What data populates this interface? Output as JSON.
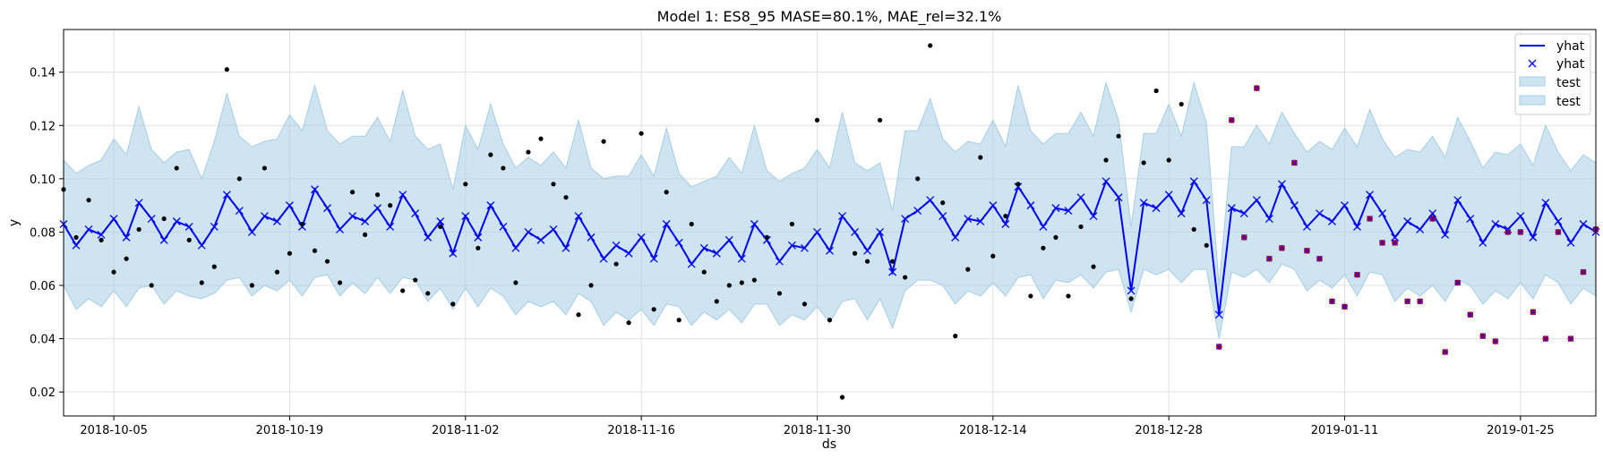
{
  "chart_data": {
    "type": "line",
    "title": "Model 1: ES8_95 MASE=80.1%, MAE_rel=32.1%",
    "xlabel": "ds",
    "ylabel": "y",
    "x_start": "2018-10-01",
    "xlim": [
      "2018-10-01",
      "2019-01-31"
    ],
    "ylim": [
      0.011,
      0.156
    ],
    "x_ticks": [
      "2018-10-05",
      "2018-10-19",
      "2018-11-02",
      "2018-11-16",
      "2018-11-30",
      "2018-12-14",
      "2018-12-28",
      "2019-01-11",
      "2019-01-25"
    ],
    "y_ticks": [
      "0.02",
      "0.04",
      "0.06",
      "0.08",
      "0.10",
      "0.12",
      "0.14"
    ],
    "grid": true,
    "legend_position": "top-right",
    "legend": [
      {
        "label": "yhat",
        "kind": "line"
      },
      {
        "label": "yhat",
        "kind": "x-marker"
      },
      {
        "label": "test",
        "kind": "band"
      },
      {
        "label": "test",
        "kind": "band"
      }
    ],
    "colors": {
      "yhat": "#0000ff",
      "band": "#a6cee3",
      "band_edge": "#a6cee3",
      "train_points": "#000000",
      "test_points": "#cc0000",
      "grid": "#e0e0e0"
    },
    "yhat": [
      0.083,
      0.075,
      0.081,
      0.079,
      0.085,
      0.078,
      0.091,
      0.085,
      0.077,
      0.084,
      0.082,
      0.075,
      0.082,
      0.094,
      0.088,
      0.08,
      0.086,
      0.084,
      0.09,
      0.082,
      0.096,
      0.089,
      0.081,
      0.086,
      0.084,
      0.089,
      0.082,
      0.094,
      0.087,
      0.078,
      0.084,
      0.072,
      0.086,
      0.078,
      0.09,
      0.082,
      0.074,
      0.08,
      0.077,
      0.081,
      0.074,
      0.086,
      0.078,
      0.07,
      0.075,
      0.072,
      0.078,
      0.07,
      0.083,
      0.076,
      0.068,
      0.074,
      0.072,
      0.077,
      0.07,
      0.083,
      0.077,
      0.069,
      0.075,
      0.074,
      0.08,
      0.073,
      0.086,
      0.08,
      0.073,
      0.08,
      0.065,
      0.085,
      0.088,
      0.092,
      0.086,
      0.078,
      0.085,
      0.084,
      0.09,
      0.083,
      0.097,
      0.09,
      0.082,
      0.089,
      0.088,
      0.093,
      0.086,
      0.099,
      0.093,
      0.058,
      0.091,
      0.089,
      0.094,
      0.087,
      0.099,
      0.092,
      0.049,
      0.089,
      0.087,
      0.092,
      0.085,
      0.098,
      0.09,
      0.082,
      0.087,
      0.084,
      0.09,
      0.082,
      0.094,
      0.087,
      0.078,
      0.084,
      0.081,
      0.087,
      0.079,
      0.092,
      0.085,
      0.076,
      0.083,
      0.081,
      0.086,
      0.078,
      0.091,
      0.084,
      0.076,
      0.083,
      0.08
    ],
    "upper": [
      0.107,
      0.102,
      0.105,
      0.107,
      0.115,
      0.109,
      0.127,
      0.111,
      0.106,
      0.11,
      0.111,
      0.1,
      0.114,
      0.132,
      0.116,
      0.112,
      0.114,
      0.115,
      0.124,
      0.118,
      0.135,
      0.118,
      0.113,
      0.116,
      0.116,
      0.123,
      0.114,
      0.133,
      0.116,
      0.111,
      0.113,
      0.096,
      0.12,
      0.111,
      0.128,
      0.113,
      0.104,
      0.108,
      0.105,
      0.11,
      0.104,
      0.122,
      0.104,
      0.1,
      0.101,
      0.101,
      0.109,
      0.101,
      0.119,
      0.102,
      0.097,
      0.099,
      0.101,
      0.108,
      0.102,
      0.12,
      0.103,
      0.099,
      0.102,
      0.104,
      0.111,
      0.104,
      0.125,
      0.106,
      0.103,
      0.106,
      0.088,
      0.118,
      0.118,
      0.13,
      0.115,
      0.11,
      0.114,
      0.113,
      0.122,
      0.112,
      0.135,
      0.118,
      0.113,
      0.117,
      0.117,
      0.125,
      0.116,
      0.136,
      0.122,
      0.082,
      0.117,
      0.117,
      0.128,
      0.116,
      0.136,
      0.121,
      0.06,
      0.112,
      0.112,
      0.12,
      0.113,
      0.125,
      0.117,
      0.11,
      0.114,
      0.111,
      0.119,
      0.112,
      0.126,
      0.115,
      0.108,
      0.111,
      0.11,
      0.116,
      0.108,
      0.123,
      0.114,
      0.104,
      0.11,
      0.109,
      0.113,
      0.105,
      0.12,
      0.11,
      0.103,
      0.109,
      0.106
    ],
    "lower": [
      0.06,
      0.051,
      0.055,
      0.052,
      0.058,
      0.052,
      0.059,
      0.06,
      0.053,
      0.058,
      0.056,
      0.055,
      0.057,
      0.062,
      0.063,
      0.056,
      0.06,
      0.058,
      0.062,
      0.056,
      0.063,
      0.064,
      0.056,
      0.061,
      0.057,
      0.063,
      0.057,
      0.063,
      0.062,
      0.054,
      0.059,
      0.051,
      0.059,
      0.052,
      0.059,
      0.056,
      0.049,
      0.054,
      0.052,
      0.054,
      0.049,
      0.057,
      0.054,
      0.045,
      0.05,
      0.047,
      0.051,
      0.045,
      0.053,
      0.052,
      0.045,
      0.05,
      0.047,
      0.051,
      0.046,
      0.053,
      0.053,
      0.045,
      0.049,
      0.047,
      0.052,
      0.046,
      0.054,
      0.055,
      0.047,
      0.055,
      0.044,
      0.058,
      0.062,
      0.062,
      0.06,
      0.053,
      0.058,
      0.056,
      0.061,
      0.056,
      0.063,
      0.064,
      0.055,
      0.062,
      0.061,
      0.064,
      0.059,
      0.065,
      0.066,
      0.05,
      0.066,
      0.064,
      0.066,
      0.061,
      0.066,
      0.066,
      0.04,
      0.065,
      0.063,
      0.066,
      0.061,
      0.068,
      0.066,
      0.058,
      0.062,
      0.059,
      0.064,
      0.056,
      0.065,
      0.064,
      0.054,
      0.059,
      0.056,
      0.06,
      0.054,
      0.062,
      0.06,
      0.053,
      0.058,
      0.055,
      0.061,
      0.055,
      0.064,
      0.061,
      0.053,
      0.059,
      0.056
    ],
    "train_points": [
      [
        0,
        0.096
      ],
      [
        1,
        0.078
      ],
      [
        2,
        0.092
      ],
      [
        3,
        0.077
      ],
      [
        4,
        0.065
      ],
      [
        5,
        0.07
      ],
      [
        6,
        0.081
      ],
      [
        7,
        0.06
      ],
      [
        8,
        0.085
      ],
      [
        9,
        0.104
      ],
      [
        10,
        0.077
      ],
      [
        11,
        0.061
      ],
      [
        12,
        0.067
      ],
      [
        13,
        0.141
      ],
      [
        14,
        0.1
      ],
      [
        15,
        0.06
      ],
      [
        16,
        0.104
      ],
      [
        17,
        0.065
      ],
      [
        18,
        0.072
      ],
      [
        19,
        0.083
      ],
      [
        20,
        0.073
      ],
      [
        21,
        0.069
      ],
      [
        22,
        0.061
      ],
      [
        23,
        0.095
      ],
      [
        24,
        0.079
      ],
      [
        25,
        0.094
      ],
      [
        26,
        0.09
      ],
      [
        27,
        0.058
      ],
      [
        28,
        0.062
      ],
      [
        29,
        0.057
      ],
      [
        30,
        0.082
      ],
      [
        31,
        0.053
      ],
      [
        32,
        0.098
      ],
      [
        33,
        0.074
      ],
      [
        34,
        0.109
      ],
      [
        35,
        0.104
      ],
      [
        36,
        0.061
      ],
      [
        37,
        0.11
      ],
      [
        38,
        0.115
      ],
      [
        39,
        0.098
      ],
      [
        40,
        0.093
      ],
      [
        41,
        0.049
      ],
      [
        42,
        0.06
      ],
      [
        43,
        0.114
      ],
      [
        44,
        0.068
      ],
      [
        45,
        0.046
      ],
      [
        46,
        0.117
      ],
      [
        47,
        0.051
      ],
      [
        48,
        0.095
      ],
      [
        49,
        0.047
      ],
      [
        50,
        0.083
      ],
      [
        51,
        0.065
      ],
      [
        52,
        0.054
      ],
      [
        53,
        0.06
      ],
      [
        54,
        0.061
      ],
      [
        55,
        0.062
      ],
      [
        56,
        0.078
      ],
      [
        57,
        0.057
      ],
      [
        58,
        0.083
      ],
      [
        59,
        0.053
      ],
      [
        60,
        0.122
      ],
      [
        61,
        0.047
      ],
      [
        62,
        0.018
      ],
      [
        63,
        0.072
      ],
      [
        64,
        0.069
      ],
      [
        65,
        0.122
      ],
      [
        66,
        0.069
      ],
      [
        67,
        0.063
      ],
      [
        68,
        0.1
      ],
      [
        69,
        0.15
      ],
      [
        70,
        0.091
      ],
      [
        71,
        0.041
      ],
      [
        72,
        0.066
      ],
      [
        73,
        0.108
      ],
      [
        74,
        0.071
      ],
      [
        75,
        0.086
      ],
      [
        76,
        0.098
      ],
      [
        77,
        0.056
      ],
      [
        78,
        0.074
      ],
      [
        79,
        0.078
      ],
      [
        80,
        0.056
      ],
      [
        81,
        0.082
      ],
      [
        82,
        0.067
      ],
      [
        83,
        0.107
      ],
      [
        84,
        0.116
      ],
      [
        85,
        0.055
      ],
      [
        86,
        0.106
      ],
      [
        87,
        0.133
      ],
      [
        88,
        0.107
      ],
      [
        89,
        0.128
      ],
      [
        90,
        0.081
      ],
      [
        91,
        0.075
      ]
    ],
    "test_points": [
      [
        92,
        0.037
      ],
      [
        93,
        0.122
      ],
      [
        94,
        0.078
      ],
      [
        95,
        0.134
      ],
      [
        96,
        0.07
      ],
      [
        97,
        0.074
      ],
      [
        98,
        0.106
      ],
      [
        99,
        0.073
      ],
      [
        100,
        0.07
      ],
      [
        101,
        0.054
      ],
      [
        102,
        0.052
      ],
      [
        103,
        0.064
      ],
      [
        104,
        0.085
      ],
      [
        105,
        0.076
      ],
      [
        106,
        0.076
      ],
      [
        107,
        0.054
      ],
      [
        108,
        0.054
      ],
      [
        109,
        0.085
      ],
      [
        110,
        0.035
      ],
      [
        111,
        0.061
      ],
      [
        112,
        0.049
      ],
      [
        113,
        0.041
      ],
      [
        114,
        0.039
      ],
      [
        115,
        0.08
      ],
      [
        116,
        0.08
      ],
      [
        117,
        0.05
      ],
      [
        118,
        0.04
      ],
      [
        119,
        0.08
      ],
      [
        120,
        0.04
      ],
      [
        121,
        0.065
      ],
      [
        122,
        0.081
      ]
    ]
  }
}
